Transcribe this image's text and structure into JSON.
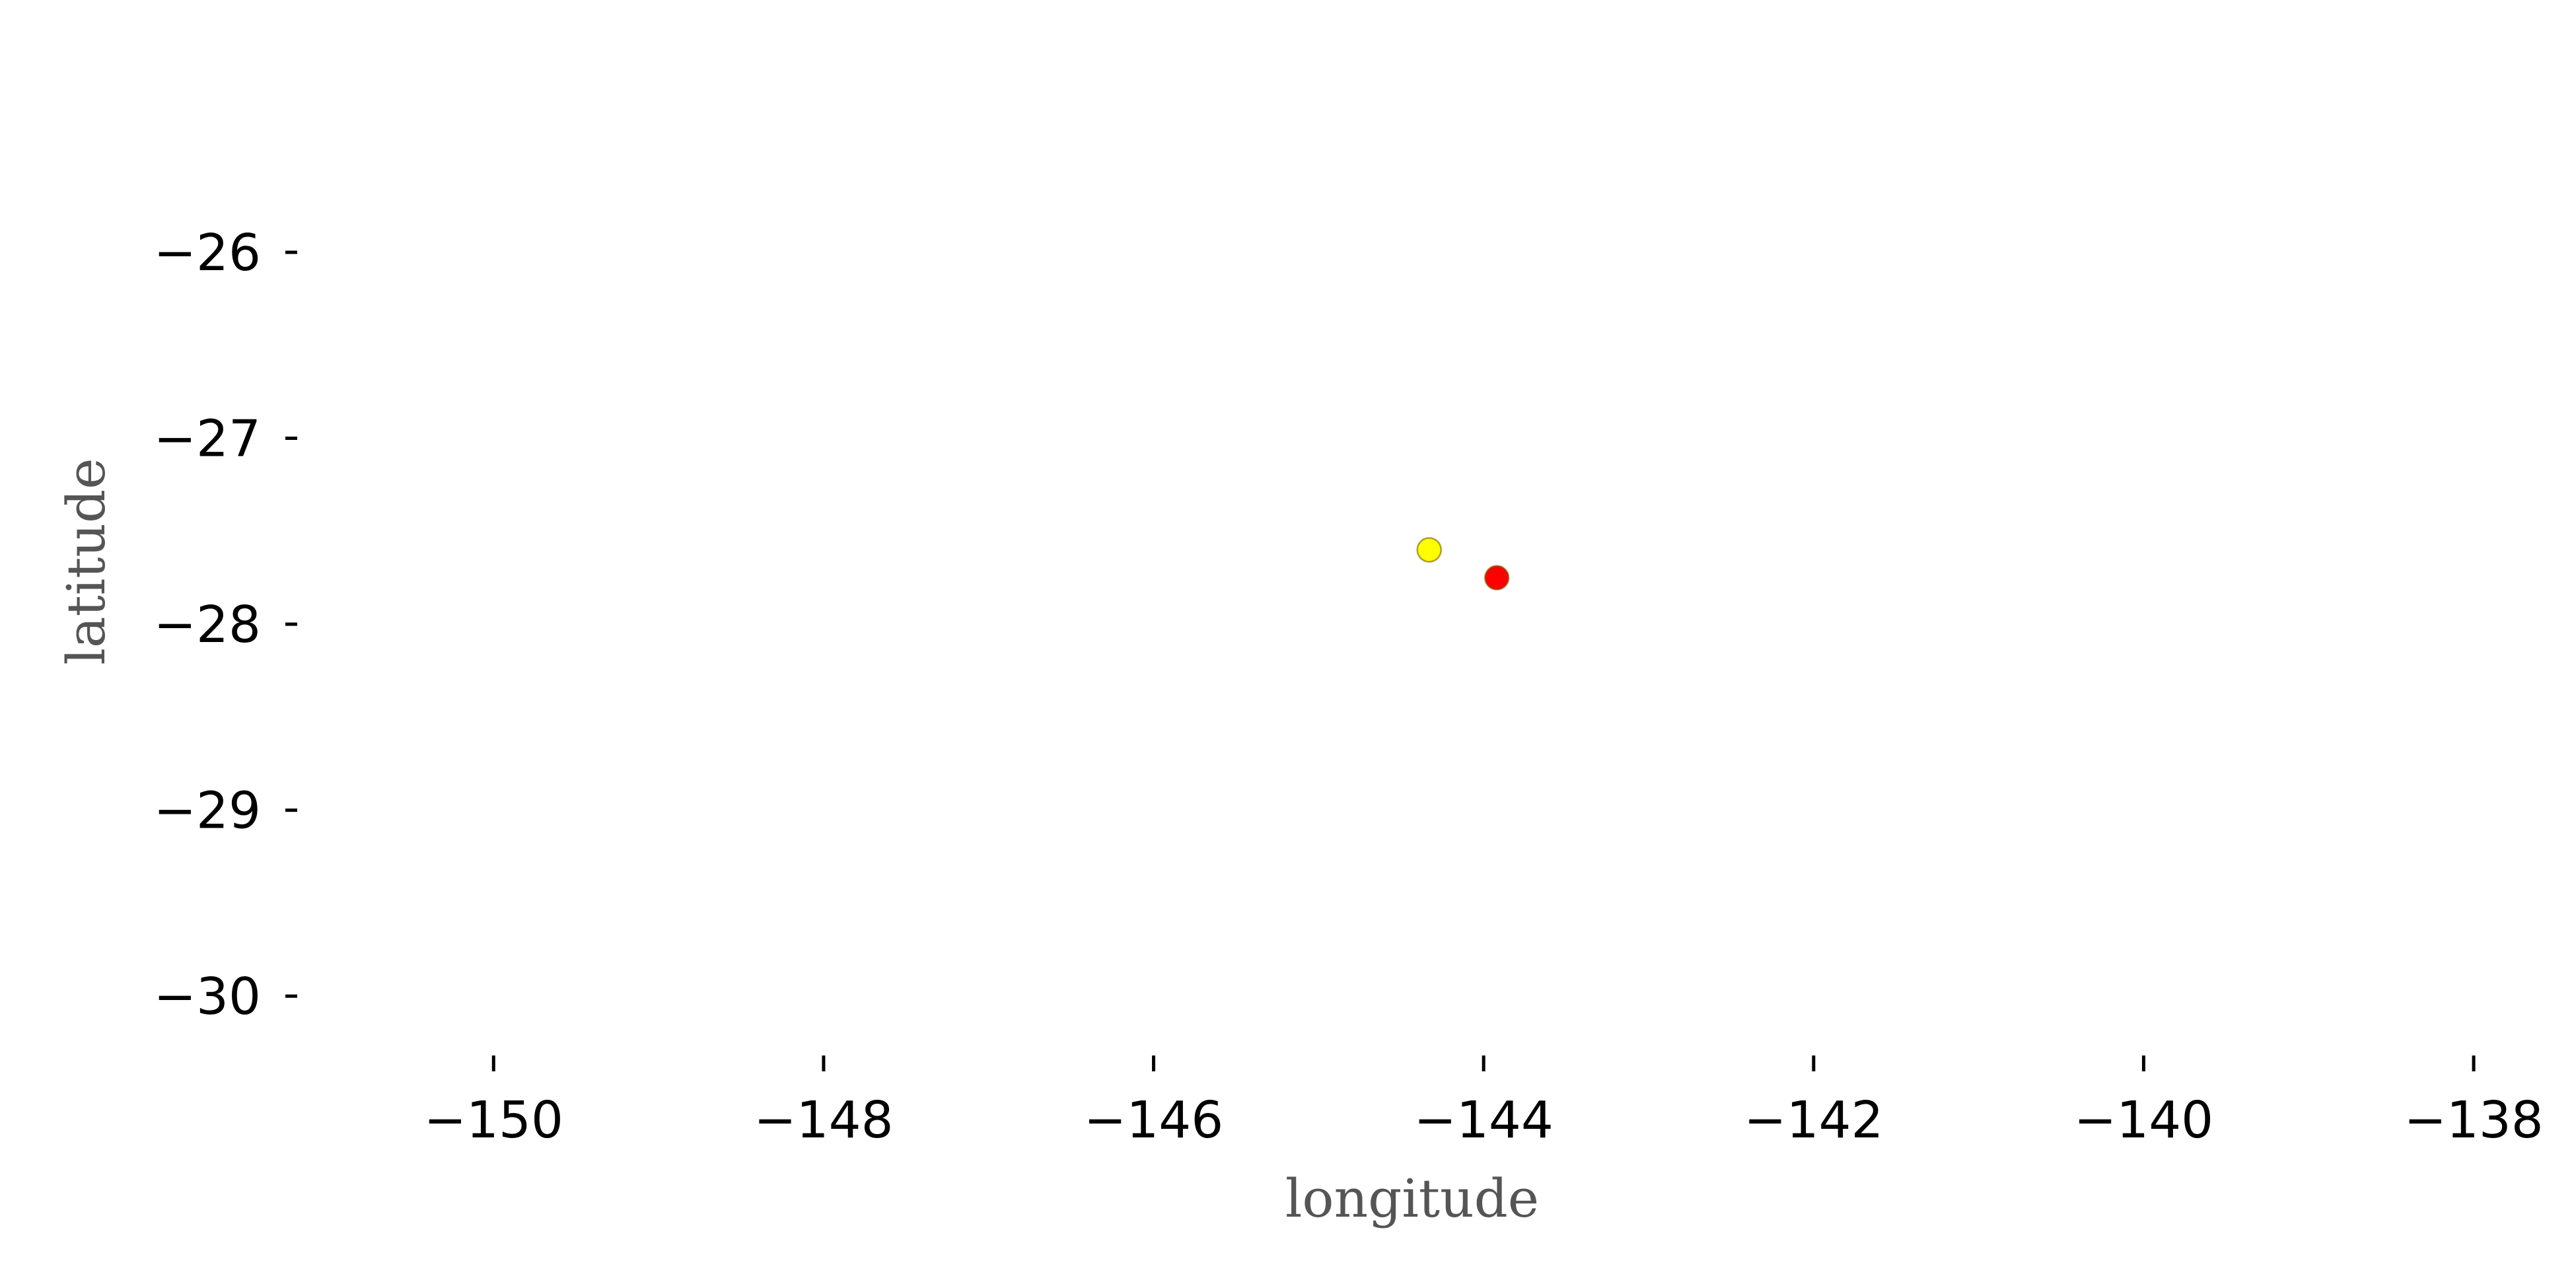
{
  "chart_data": {
    "type": "scatter",
    "xlabel": "longitude",
    "ylabel": "latitude",
    "xlim": [
      -151.15,
      -137.6
    ],
    "ylim": [
      -30.22,
      -25.3
    ],
    "xticks": [
      -150,
      -148,
      -146,
      -144,
      -142,
      -140,
      -138
    ],
    "yticks": [
      -30,
      -29,
      -28,
      -27,
      -26
    ],
    "xtick_labels": [
      "−150",
      "−148",
      "−146",
      "−144",
      "−142",
      "−140",
      "−138"
    ],
    "ytick_labels": [
      "−30",
      "−29",
      "−28",
      "−27",
      "−26"
    ],
    "grid": false,
    "points": [
      {
        "x": -144.33,
        "y": -27.6,
        "color": "#ffff00"
      },
      {
        "x": -143.92,
        "y": -27.75,
        "color": "#ff0000"
      }
    ]
  }
}
